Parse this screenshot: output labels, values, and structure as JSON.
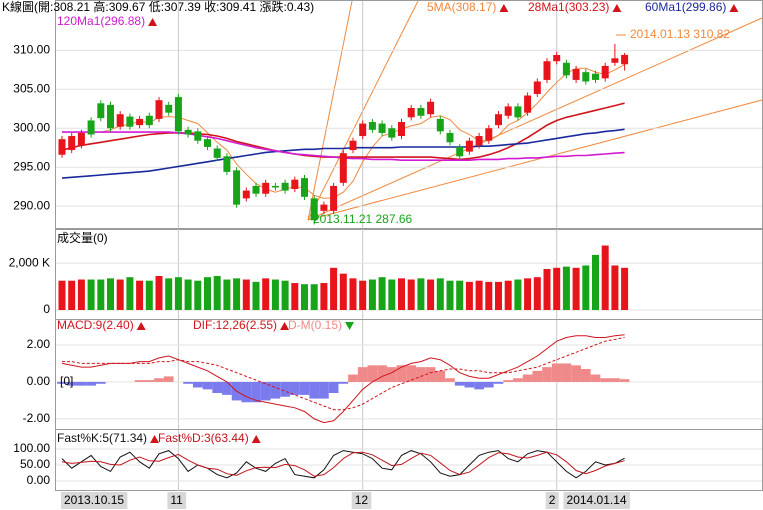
{
  "chart_data": [
    {
      "type": "candlestick",
      "title": "K線圖(開:308.21 高:309.67 低:307.39 收:309.41 漲跌:0.43)",
      "categories": [
        "2013.10.15",
        null,
        null,
        null,
        null,
        null,
        null,
        null,
        null,
        null,
        null,
        null,
        "11",
        null,
        null,
        null,
        null,
        null,
        null,
        null,
        null,
        null,
        null,
        null,
        null,
        null,
        null,
        null,
        null,
        null,
        null,
        "12",
        null,
        null,
        null,
        null,
        null,
        null,
        null,
        null,
        null,
        null,
        null,
        null,
        null,
        null,
        null,
        null,
        null,
        null,
        null,
        "2",
        null,
        null,
        null,
        null,
        null,
        null,
        "2014.01.14"
      ],
      "open": [
        296.6,
        297.2,
        297.8,
        301.0,
        303.2,
        303.0,
        300.2,
        301.5,
        300.4,
        301.6,
        301.2,
        303.0,
        304.0,
        299.8,
        299.6,
        298.6,
        297.4,
        296.4,
        294.6,
        291.0,
        292.6,
        291.6,
        292.6,
        293.0,
        292.2,
        293.6,
        291.0,
        289.4,
        289.4,
        293.0,
        297.2,
        299.0,
        300.8,
        300.6,
        300.0,
        299.0,
        301.4,
        302.6,
        301.8,
        301.2,
        299.4,
        297.6,
        297.0,
        297.8,
        298.4,
        300.4,
        301.6,
        302.8,
        302.0,
        304.4,
        306.2,
        308.6,
        308.4,
        306.2,
        307.2,
        307.0,
        306.4,
        308.4,
        308.21
      ],
      "high": [
        299.0,
        299.4,
        299.8,
        301.4,
        303.6,
        303.4,
        302.2,
        301.9,
        301.6,
        302.0,
        304.0,
        303.4,
        304.4,
        300.2,
        300.0,
        299.0,
        297.8,
        296.8,
        295.0,
        292.4,
        293.0,
        293.4,
        293.0,
        293.4,
        293.8,
        294.0,
        291.4,
        290.6,
        293.0,
        297.2,
        298.8,
        301.0,
        301.2,
        301.0,
        300.4,
        301.2,
        303.0,
        303.0,
        303.8,
        301.6,
        299.8,
        298.0,
        298.8,
        299.4,
        300.4,
        302.2,
        303.2,
        303.2,
        304.6,
        306.4,
        309.0,
        309.8,
        308.8,
        308.0,
        307.6,
        307.4,
        308.4,
        310.82,
        309.67
      ],
      "low": [
        296.2,
        296.8,
        297.4,
        298.8,
        300.9,
        299.6,
        299.8,
        299.8,
        300.0,
        300.0,
        300.8,
        301.6,
        299.2,
        298.8,
        298.0,
        297.2,
        295.8,
        294.0,
        289.8,
        290.6,
        291.2,
        291.2,
        292.0,
        291.6,
        291.8,
        290.8,
        287.66,
        289.0,
        289.0,
        292.6,
        296.8,
        298.6,
        299.4,
        299.0,
        298.4,
        298.6,
        301.0,
        301.2,
        301.4,
        299.2,
        297.8,
        296.0,
        296.6,
        297.4,
        298.0,
        300.0,
        301.2,
        301.0,
        301.6,
        304.0,
        305.8,
        308.2,
        306.4,
        305.8,
        305.6,
        305.8,
        306.0,
        308.0,
        307.39
      ],
      "close": [
        298.6,
        299.0,
        299.4,
        299.2,
        301.3,
        300.0,
        301.8,
        300.2,
        301.2,
        300.4,
        303.6,
        302.0,
        299.6,
        299.2,
        298.4,
        297.6,
        296.2,
        294.4,
        290.2,
        292.0,
        291.6,
        293.0,
        292.4,
        292.0,
        293.4,
        291.2,
        288.2,
        290.2,
        292.6,
        296.8,
        298.4,
        300.6,
        299.8,
        299.4,
        298.8,
        300.8,
        302.6,
        301.6,
        303.4,
        299.6,
        298.2,
        296.4,
        298.4,
        299.0,
        300.0,
        301.8,
        302.8,
        301.4,
        304.2,
        306.0,
        308.6,
        309.4,
        306.8,
        307.6,
        306.0,
        306.2,
        308.0,
        308.98,
        309.41
      ],
      "up_color": "#e8141c",
      "down_color": "#18a418",
      "series": [
        {
          "name": "5MA(308.17)",
          "color": "#f0883c",
          "arrow": "up",
          "values": [
            null,
            null,
            null,
            null,
            299.5,
            299.8,
            300.3,
            300.5,
            300.9,
            300.7,
            301.4,
            301.5,
            301.4,
            301.0,
            300.6,
            299.4,
            298.2,
            297.2,
            295.4,
            294.1,
            292.9,
            292.2,
            291.8,
            292.2,
            292.5,
            292.4,
            291.4,
            291.0,
            291.1,
            291.8,
            293.2,
            295.7,
            297.6,
            299.0,
            299.4,
            299.9,
            300.3,
            300.6,
            301.4,
            301.6,
            301.1,
            299.8,
            299.2,
            298.4,
            298.4,
            299.1,
            300.4,
            301.0,
            302.0,
            303.2,
            304.6,
            305.9,
            307.0,
            307.7,
            307.7,
            307.2,
            306.9,
            307.5,
            308.17
          ]
        },
        {
          "name": "28Ma1(303.23)",
          "color": "#d0141c",
          "arrow": "up",
          "values": [
            297.2,
            297.5,
            297.8,
            298.0,
            298.2,
            298.4,
            298.6,
            298.8,
            299.0,
            299.2,
            299.3,
            299.4,
            299.4,
            299.4,
            299.3,
            299.2,
            299.0,
            298.7,
            298.3,
            298.0,
            297.7,
            297.4,
            297.1,
            296.9,
            296.7,
            296.5,
            296.4,
            296.3,
            296.3,
            296.3,
            296.3,
            296.3,
            296.3,
            296.3,
            296.3,
            296.3,
            296.3,
            296.3,
            296.3,
            296.2,
            296.1,
            296.0,
            296.1,
            296.3,
            296.6,
            297.0,
            297.5,
            298.1,
            298.8,
            299.6,
            300.4,
            301.0,
            301.4,
            301.7,
            302.0,
            302.3,
            302.6,
            302.9,
            303.23
          ]
        },
        {
          "name": "60Ma1(299.86)",
          "color": "#1a2a9c",
          "arrow": "up",
          "values": [
            293.6,
            293.7,
            293.8,
            293.9,
            294.0,
            294.1,
            294.2,
            294.3,
            294.4,
            294.5,
            294.7,
            294.9,
            295.1,
            295.3,
            295.5,
            295.7,
            295.9,
            296.1,
            296.3,
            296.5,
            296.7,
            296.9,
            297.0,
            297.1,
            297.2,
            297.3,
            297.3,
            297.4,
            297.4,
            297.4,
            297.5,
            297.5,
            297.5,
            297.5,
            297.5,
            297.6,
            297.6,
            297.6,
            297.6,
            297.6,
            297.6,
            297.6,
            297.6,
            297.7,
            297.7,
            297.8,
            297.9,
            298.0,
            298.1,
            298.3,
            298.5,
            298.7,
            298.9,
            299.1,
            299.3,
            299.4,
            299.6,
            299.7,
            299.86
          ]
        },
        {
          "name": "120Ma1(296.88)",
          "color": "#d21ad2",
          "arrow": "up",
          "values": [
            299.5,
            299.5,
            299.5,
            299.5,
            299.5,
            299.5,
            299.5,
            299.5,
            299.5,
            299.5,
            299.5,
            299.5,
            299.4,
            299.3,
            299.1,
            298.9,
            298.7,
            298.4,
            298.1,
            297.8,
            297.5,
            297.3,
            297.1,
            296.9,
            296.7,
            296.6,
            296.5,
            296.4,
            296.3,
            296.2,
            296.1,
            296.1,
            296.0,
            296.0,
            296.0,
            295.9,
            295.9,
            295.9,
            295.9,
            295.9,
            295.9,
            295.9,
            295.9,
            296.0,
            296.0,
            296.0,
            296.1,
            296.1,
            296.2,
            296.2,
            296.3,
            296.4,
            296.4,
            296.5,
            296.5,
            296.6,
            296.7,
            296.8,
            296.88
          ]
        }
      ],
      "annotations": [
        "2014.01.13  310.82",
        "2013.11.21  287.66"
      ],
      "ylim": [
        287.2,
        316.2
      ],
      "yticks": [
        {
          "value": 290,
          "label": "290.00"
        },
        {
          "value": 295,
          "label": "295.00"
        },
        {
          "value": 300,
          "label": "300.00"
        },
        {
          "value": 305,
          "label": "305.00"
        },
        {
          "value": 310,
          "label": "310.00"
        }
      ],
      "grid": true
    },
    {
      "type": "bar",
      "title": "成交量(0)",
      "values": [
        1250,
        1250,
        1300,
        1300,
        1300,
        1350,
        1300,
        1400,
        1250,
        1250,
        1450,
        1350,
        1400,
        1300,
        1250,
        1400,
        1450,
        1300,
        1350,
        1300,
        1200,
        1350,
        1300,
        1250,
        1150,
        1100,
        1100,
        1150,
        1800,
        1550,
        1350,
        1250,
        1300,
        1400,
        1300,
        1350,
        1300,
        1350,
        1300,
        1350,
        1250,
        1250,
        1200,
        1250,
        1200,
        1200,
        1250,
        1300,
        1350,
        1400,
        1750,
        1800,
        1850,
        1800,
        1900,
        2350,
        2750,
        1900,
        1800
      ],
      "ylim": [
        0,
        3370
      ],
      "yticks": [
        0,
        {
          "value": 2000,
          "label": "2,000 K"
        }
      ],
      "grid": true
    },
    {
      "type": "macd",
      "series": [
        {
          "name": "MACD:9(2.40)",
          "color": "#d0141c",
          "arrow": "up",
          "style": "dashed",
          "values": [
            1.1,
            1.1,
            1.0,
            1.0,
            1.0,
            1.0,
            1.0,
            1.0,
            1.0,
            1.0,
            1.1,
            1.1,
            1.2,
            1.1,
            1.1,
            1.0,
            0.9,
            0.7,
            0.5,
            0.3,
            0.1,
            -0.1,
            -0.3,
            -0.5,
            -0.7,
            -0.9,
            -1.1,
            -1.3,
            -1.5,
            -1.5,
            -1.4,
            -1.2,
            -0.9,
            -0.6,
            -0.3,
            -0.1,
            0.1,
            0.3,
            0.5,
            0.6,
            0.7,
            0.7,
            0.6,
            0.6,
            0.5,
            0.5,
            0.5,
            0.6,
            0.7,
            0.8,
            1.0,
            1.2,
            1.4,
            1.6,
            1.8,
            2.0,
            2.2,
            2.3,
            2.4
          ]
        },
        {
          "name": "DIF:12,26(2.55)",
          "color": "#d0141c",
          "arrow": "up",
          "style": "solid",
          "values": [
            1.0,
            0.9,
            0.8,
            0.8,
            0.9,
            1.0,
            1.0,
            1.0,
            1.1,
            1.1,
            1.3,
            1.4,
            1.2,
            1.0,
            0.8,
            0.6,
            0.3,
            0.0,
            -0.5,
            -0.8,
            -1.0,
            -1.1,
            -1.2,
            -1.3,
            -1.4,
            -1.6,
            -2.0,
            -2.2,
            -2.1,
            -1.6,
            -1.0,
            -0.4,
            0.0,
            0.3,
            0.5,
            0.8,
            1.0,
            1.1,
            1.3,
            1.2,
            0.9,
            0.5,
            0.3,
            0.2,
            0.2,
            0.4,
            0.6,
            0.8,
            1.1,
            1.4,
            1.8,
            2.2,
            2.4,
            2.5,
            2.5,
            2.4,
            2.4,
            2.5,
            2.55
          ]
        },
        {
          "name": "D-M(0.15)",
          "color": "#f08a8a",
          "negative_color": "#7b7bee",
          "arrow": "down",
          "style": "bar",
          "values": [
            -0.1,
            -0.2,
            -0.2,
            -0.2,
            -0.1,
            0.0,
            0.0,
            0.0,
            0.1,
            0.1,
            0.2,
            0.3,
            0.0,
            -0.1,
            -0.3,
            -0.4,
            -0.6,
            -0.7,
            -1.0,
            -1.1,
            -1.1,
            -1.0,
            -0.9,
            -0.8,
            -0.7,
            -0.7,
            -0.9,
            -0.9,
            -0.6,
            -0.1,
            0.4,
            0.8,
            0.9,
            0.9,
            0.8,
            0.9,
            0.9,
            0.8,
            0.8,
            0.6,
            0.2,
            -0.2,
            -0.3,
            -0.4,
            -0.3,
            -0.1,
            0.1,
            0.2,
            0.4,
            0.6,
            0.8,
            1.0,
            1.0,
            0.9,
            0.7,
            0.4,
            0.2,
            0.2,
            0.15
          ]
        }
      ],
      "annotations": [
        "[0]"
      ],
      "ylim": [
        -2.49,
        3.24
      ],
      "yticks": [
        {
          "value": -2,
          "label": "-2.00"
        },
        {
          "value": 0,
          "label": "0.00"
        },
        {
          "value": 2,
          "label": "2.00"
        }
      ],
      "grid": true
    },
    {
      "type": "line",
      "series": [
        {
          "name": "Fast%K:5(71.34)",
          "color": "#111111",
          "arrow": "up",
          "values": [
            70,
            40,
            60,
            80,
            45,
            30,
            75,
            90,
            60,
            40,
            85,
            95,
            70,
            30,
            50,
            40,
            20,
            10,
            25,
            60,
            40,
            30,
            55,
            70,
            20,
            15,
            10,
            35,
            80,
            95,
            90,
            85,
            70,
            40,
            35,
            80,
            95,
            85,
            60,
            25,
            15,
            20,
            50,
            80,
            90,
            95,
            70,
            60,
            85,
            95,
            90,
            60,
            30,
            10,
            30,
            60,
            50,
            55,
            71.34
          ]
        },
        {
          "name": "Fast%D:3(63.44)",
          "color": "#c0141c",
          "arrow": "up",
          "values": [
            60,
            55,
            58,
            62,
            60,
            52,
            50,
            65,
            75,
            63,
            62,
            73,
            83,
            65,
            50,
            40,
            37,
            23,
            18,
            32,
            42,
            43,
            42,
            52,
            48,
            35,
            15,
            20,
            42,
            70,
            88,
            90,
            82,
            65,
            48,
            52,
            70,
            87,
            80,
            57,
            33,
            20,
            28,
            50,
            73,
            88,
            85,
            75,
            72,
            80,
            90,
            82,
            60,
            33,
            23,
            33,
            47,
            55,
            63.44
          ]
        }
      ],
      "ylim": [
        -28,
        153
      ],
      "yticks": [
        {
          "value": 0,
          "label": "0.00"
        },
        {
          "value": 50,
          "label": "50.00"
        },
        {
          "value": 100,
          "label": "100.00"
        }
      ],
      "grid": true
    }
  ]
}
